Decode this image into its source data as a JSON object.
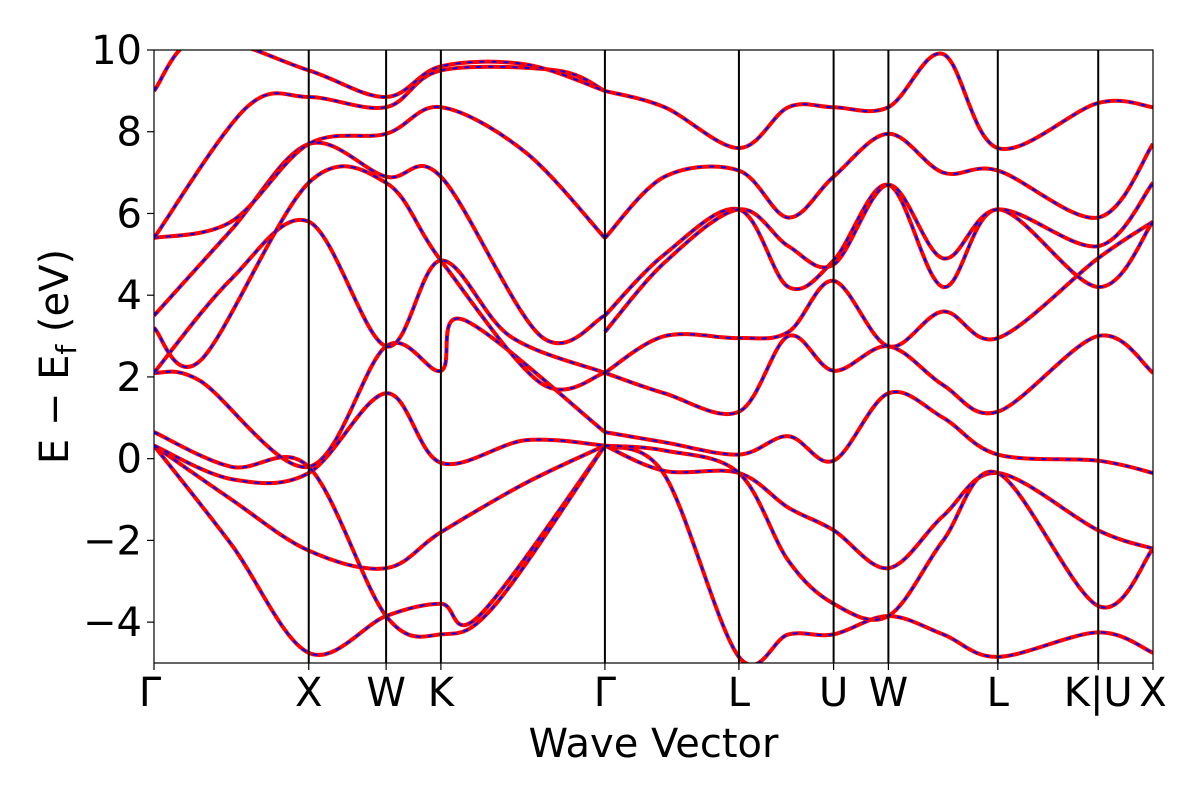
{
  "chart_data": {
    "type": "line",
    "xlabel": "Wave Vector",
    "ylabel_main": "E − E",
    "ylabel_sub": "f",
    "ylabel_unit": " (eV)",
    "ylim": [
      -5,
      10
    ],
    "yticks": [
      -4,
      -2,
      0,
      2,
      4,
      6,
      8,
      10
    ],
    "ytick_labels": [
      "−4",
      "−2",
      "0",
      "2",
      "4",
      "6",
      "8",
      "10"
    ],
    "xlim": [
      0,
      6.456
    ],
    "kpoints": [
      {
        "label": "Γ",
        "x": 0.0
      },
      {
        "label": "X",
        "x": 1.0
      },
      {
        "label": "W",
        "x": 1.5
      },
      {
        "label": "K",
        "x": 1.854
      },
      {
        "label": "Γ",
        "x": 2.914
      },
      {
        "label": "L",
        "x": 3.78
      },
      {
        "label": "U",
        "x": 4.392
      },
      {
        "label": "W",
        "x": 4.746
      },
      {
        "label": "L",
        "x": 5.453
      },
      {
        "label": "K|U",
        "x": 6.102
      },
      {
        "label": "X",
        "x": 6.456
      }
    ],
    "grid": false,
    "legend": "none",
    "colors": {
      "band_main": "#ff0000",
      "band_overlay": "#0000ff",
      "kline": "#000000"
    },
    "series": [
      {
        "values": [
          [
            0.0,
            0.32
          ],
          [
            0.5,
            -1.0
          ],
          [
            1.0,
            -2.25
          ],
          [
            1.5,
            -2.68
          ],
          [
            1.854,
            -1.8
          ],
          [
            2.4,
            -0.6
          ],
          [
            2.914,
            0.32
          ]
        ]
      },
      {
        "values": [
          [
            0.0,
            0.32
          ],
          [
            0.5,
            -2.1
          ],
          [
            1.0,
            -4.75
          ],
          [
            1.5,
            -3.85
          ],
          [
            1.854,
            -3.55
          ],
          [
            2.1,
            -3.85
          ],
          [
            2.914,
            0.32
          ]
        ]
      },
      {
        "values": [
          [
            0.0,
            0.32
          ],
          [
            0.5,
            -0.5
          ],
          [
            1.0,
            -0.35
          ],
          [
            1.5,
            1.6
          ],
          [
            1.854,
            -0.1
          ],
          [
            2.4,
            0.45
          ],
          [
            2.914,
            0.32
          ]
        ]
      },
      {
        "values": [
          [
            0.0,
            0.65
          ],
          [
            0.5,
            -0.2
          ],
          [
            1.0,
            -0.2
          ],
          [
            1.5,
            -3.85
          ],
          [
            1.854,
            -4.3
          ],
          [
            2.2,
            -3.6
          ],
          [
            2.914,
            0.32
          ]
        ]
      },
      {
        "values": [
          [
            0.0,
            2.1
          ],
          [
            0.3,
            1.9
          ],
          [
            1.0,
            -0.2
          ],
          [
            1.5,
            2.75
          ],
          [
            1.854,
            2.15
          ],
          [
            2.0,
            3.4
          ],
          [
            2.914,
            0.65
          ]
        ]
      },
      {
        "values": [
          [
            0.0,
            2.1
          ],
          [
            0.5,
            4.4
          ],
          [
            1.0,
            5.8
          ],
          [
            1.5,
            2.75
          ],
          [
            1.854,
            4.85
          ],
          [
            2.3,
            3.0
          ],
          [
            2.914,
            2.1
          ]
        ]
      },
      {
        "values": [
          [
            0.0,
            3.2
          ],
          [
            0.3,
            2.4
          ],
          [
            1.0,
            6.75
          ],
          [
            1.5,
            6.75
          ],
          [
            1.854,
            4.85
          ],
          [
            2.5,
            1.85
          ],
          [
            2.914,
            2.1
          ]
        ]
      },
      {
        "values": [
          [
            0.0,
            3.5
          ],
          [
            0.5,
            5.6
          ],
          [
            1.0,
            7.7
          ],
          [
            1.5,
            6.9
          ],
          [
            1.854,
            6.9
          ],
          [
            2.5,
            3.0
          ],
          [
            2.914,
            3.5
          ]
        ]
      },
      {
        "values": [
          [
            0.0,
            5.4
          ],
          [
            0.5,
            5.8
          ],
          [
            1.0,
            7.7
          ],
          [
            1.5,
            7.95
          ],
          [
            1.854,
            8.6
          ],
          [
            2.4,
            7.5
          ],
          [
            2.914,
            5.4
          ]
        ]
      },
      {
        "values": [
          [
            0.0,
            5.4
          ],
          [
            0.6,
            8.6
          ],
          [
            1.0,
            8.85
          ],
          [
            1.5,
            8.6
          ],
          [
            1.854,
            9.5
          ],
          [
            2.6,
            9.5
          ],
          [
            2.914,
            9.0
          ]
        ]
      },
      {
        "values": [
          [
            0.0,
            9.0
          ],
          [
            0.3,
            10.3
          ],
          [
            1.0,
            9.5
          ],
          [
            1.5,
            8.85
          ],
          [
            1.854,
            9.6
          ],
          [
            2.4,
            9.65
          ],
          [
            2.914,
            9.0
          ]
        ]
      },
      {
        "values": [
          [
            2.914,
            0.32
          ],
          [
            3.3,
            -0.4
          ],
          [
            3.78,
            -4.85
          ],
          [
            4.1,
            -4.3
          ],
          [
            4.392,
            -4.3
          ],
          [
            4.746,
            -3.85
          ],
          [
            5.1,
            -4.3
          ],
          [
            5.453,
            -4.85
          ],
          [
            6.1,
            -4.25
          ],
          [
            6.456,
            -4.75
          ]
        ]
      },
      {
        "values": [
          [
            2.914,
            0.32
          ],
          [
            3.3,
            -0.3
          ],
          [
            3.78,
            -0.35
          ],
          [
            4.1,
            -1.2
          ],
          [
            4.392,
            -1.75
          ],
          [
            4.746,
            -2.68
          ],
          [
            5.1,
            -1.4
          ],
          [
            5.453,
            -0.35
          ],
          [
            6.1,
            -1.75
          ],
          [
            6.456,
            -2.2
          ]
        ]
      },
      {
        "values": [
          [
            2.914,
            0.32
          ],
          [
            3.3,
            0.2
          ],
          [
            3.78,
            -0.35
          ],
          [
            4.1,
            -2.5
          ],
          [
            4.392,
            -3.55
          ],
          [
            4.746,
            -3.85
          ],
          [
            5.1,
            -2.0
          ],
          [
            5.453,
            -0.35
          ],
          [
            6.1,
            -3.6
          ],
          [
            6.456,
            -2.2
          ]
        ]
      },
      {
        "values": [
          [
            2.914,
            0.65
          ],
          [
            3.3,
            0.4
          ],
          [
            3.78,
            0.1
          ],
          [
            4.1,
            0.55
          ],
          [
            4.392,
            -0.05
          ],
          [
            4.746,
            1.6
          ],
          [
            5.1,
            1.0
          ],
          [
            5.453,
            0.1
          ],
          [
            6.1,
            -0.05
          ],
          [
            6.456,
            -0.35
          ]
        ]
      },
      {
        "values": [
          [
            2.914,
            2.1
          ],
          [
            3.3,
            1.6
          ],
          [
            3.78,
            1.15
          ],
          [
            4.1,
            3.0
          ],
          [
            4.392,
            2.15
          ],
          [
            4.746,
            2.75
          ],
          [
            5.1,
            1.8
          ],
          [
            5.453,
            1.15
          ],
          [
            6.1,
            3.0
          ],
          [
            6.456,
            2.1
          ]
        ]
      },
      {
        "values": [
          [
            2.914,
            2.1
          ],
          [
            3.3,
            3.0
          ],
          [
            3.78,
            2.95
          ],
          [
            4.1,
            3.1
          ],
          [
            4.392,
            4.35
          ],
          [
            4.746,
            2.75
          ],
          [
            5.1,
            3.6
          ],
          [
            5.453,
            2.95
          ],
          [
            6.1,
            4.9
          ],
          [
            6.456,
            5.8
          ]
        ]
      },
      {
        "values": [
          [
            2.914,
            3.5
          ],
          [
            3.3,
            5.0
          ],
          [
            3.78,
            6.1
          ],
          [
            4.1,
            4.2
          ],
          [
            4.392,
            4.85
          ],
          [
            4.746,
            6.7
          ],
          [
            5.1,
            4.2
          ],
          [
            5.453,
            6.1
          ],
          [
            6.1,
            4.2
          ],
          [
            6.456,
            5.8
          ]
        ]
      },
      {
        "values": [
          [
            2.914,
            3.1
          ],
          [
            3.3,
            4.8
          ],
          [
            3.78,
            6.1
          ],
          [
            4.1,
            5.2
          ],
          [
            4.392,
            4.75
          ],
          [
            4.746,
            6.7
          ],
          [
            5.1,
            4.9
          ],
          [
            5.453,
            6.1
          ],
          [
            6.1,
            5.2
          ],
          [
            6.456,
            6.75
          ]
        ]
      },
      {
        "values": [
          [
            2.914,
            5.4
          ],
          [
            3.3,
            6.9
          ],
          [
            3.78,
            7.05
          ],
          [
            4.1,
            5.9
          ],
          [
            4.392,
            6.9
          ],
          [
            4.746,
            7.95
          ],
          [
            5.1,
            7.0
          ],
          [
            5.453,
            7.05
          ],
          [
            6.1,
            5.9
          ],
          [
            6.456,
            7.7
          ]
        ]
      },
      {
        "values": [
          [
            2.914,
            9.0
          ],
          [
            3.3,
            8.6
          ],
          [
            3.78,
            7.6
          ],
          [
            4.1,
            8.6
          ],
          [
            4.392,
            8.6
          ],
          [
            4.746,
            8.6
          ],
          [
            5.1,
            9.9
          ],
          [
            5.453,
            7.6
          ],
          [
            6.1,
            8.7
          ],
          [
            6.456,
            8.6
          ]
        ]
      }
    ]
  }
}
